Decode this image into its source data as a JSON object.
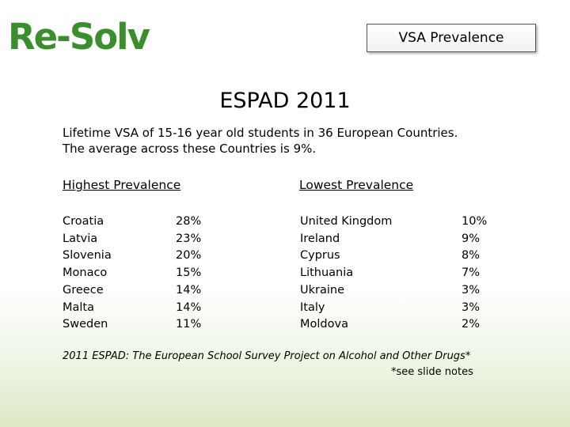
{
  "logo": {
    "text": "Re-Solv"
  },
  "slide_title": "VSA Prevalence",
  "heading": "ESPAD 2011",
  "intro": {
    "line1": "Lifetime VSA of 15-16 year old students in 36 European Countries.",
    "line2": "The average across these Countries is 9%."
  },
  "highest": {
    "title": "Highest Prevalence",
    "countries": [
      "Croatia",
      "Latvia",
      "Slovenia",
      "Monaco",
      "Greece",
      "Malta",
      "Sweden"
    ],
    "values": [
      "28%",
      "23%",
      "20%",
      "15%",
      "14%",
      "14%",
      "11%"
    ]
  },
  "lowest": {
    "title": "Lowest Prevalence",
    "countries": [
      "United Kingdom",
      "Ireland",
      "Cyprus",
      "Lithuania",
      "Ukraine",
      "Italy",
      "Moldova"
    ],
    "values": [
      "10%",
      "9%",
      "8%",
      "7%",
      "3%",
      "3%",
      "2%"
    ]
  },
  "footnote": "2011 ESPAD: The European School Survey Project on Alcohol and Other Drugs*",
  "slide_notes": "*see slide notes",
  "colors": {
    "logo": "#3a8f2c",
    "background_bottom": "#dbe9c6"
  }
}
